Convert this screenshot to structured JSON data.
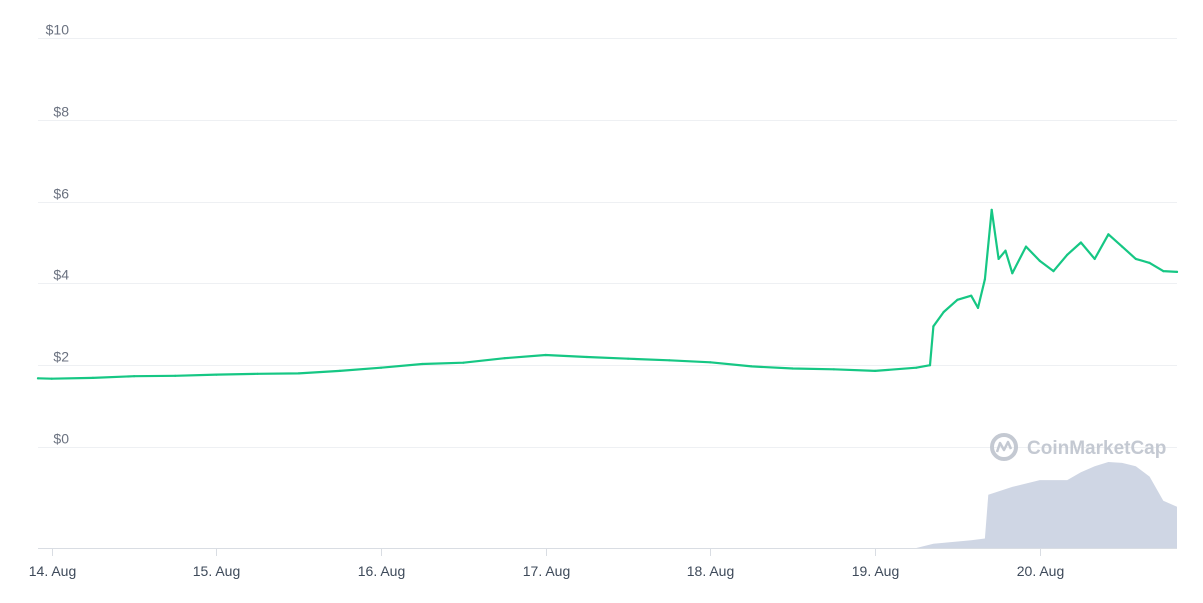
{
  "chart_data": {
    "type": "line",
    "title": "",
    "xlabel": "",
    "ylabel": "",
    "ylim": [
      0,
      10
    ],
    "x_range": [
      "13 Aug 22:00",
      "20 Aug 20:00"
    ],
    "y_ticks": [
      0,
      2,
      4,
      6,
      8,
      10
    ],
    "y_tick_labels": [
      "$0",
      "$2",
      "$4",
      "$6",
      "$8",
      "$10"
    ],
    "x_tick_labels": [
      "14. Aug",
      "15. Aug",
      "16. Aug",
      "17. Aug",
      "18. Aug",
      "19. Aug",
      "20. Aug"
    ],
    "grid": true,
    "legend": "none",
    "series": [
      {
        "color": "#16c784",
        "x": [
          "13 Aug 22:00",
          "14 Aug 00:00",
          "14 Aug 06:00",
          "14 Aug 12:00",
          "14 Aug 18:00",
          "15 Aug 00:00",
          "15 Aug 06:00",
          "15 Aug 12:00",
          "15 Aug 18:00",
          "16 Aug 00:00",
          "16 Aug 06:00",
          "16 Aug 12:00",
          "16 Aug 18:00",
          "17 Aug 00:00",
          "17 Aug 06:00",
          "17 Aug 12:00",
          "17 Aug 18:00",
          "18 Aug 00:00",
          "18 Aug 06:00",
          "18 Aug 12:00",
          "18 Aug 18:00",
          "19 Aug 00:00",
          "19 Aug 06:00",
          "19 Aug 08:00",
          "19 Aug 08:30",
          "19 Aug 10:00",
          "19 Aug 12:00",
          "19 Aug 14:00",
          "19 Aug 15:00",
          "19 Aug 16:00",
          "19 Aug 17:00",
          "19 Aug 18:00",
          "19 Aug 19:00",
          "19 Aug 20:00",
          "19 Aug 22:00",
          "20 Aug 00:00",
          "20 Aug 02:00",
          "20 Aug 04:00",
          "20 Aug 06:00",
          "20 Aug 08:00",
          "20 Aug 10:00",
          "20 Aug 12:00",
          "20 Aug 14:00",
          "20 Aug 16:00",
          "20 Aug 18:00",
          "20 Aug 20:00"
        ],
        "values": [
          1.68,
          1.67,
          1.69,
          1.73,
          1.74,
          1.77,
          1.79,
          1.8,
          1.86,
          1.94,
          2.03,
          2.06,
          2.17,
          2.25,
          2.2,
          2.16,
          2.12,
          2.07,
          1.97,
          1.92,
          1.9,
          1.86,
          1.94,
          2.0,
          2.95,
          3.3,
          3.6,
          3.7,
          3.4,
          4.1,
          5.8,
          4.6,
          4.8,
          4.25,
          4.9,
          4.55,
          4.3,
          4.7,
          5.0,
          4.6,
          5.2,
          4.9,
          4.6,
          4.5,
          4.3,
          4.28
        ]
      }
    ],
    "volume": {
      "color": "#cfd6e4",
      "x": [
        "13 Aug 22:00",
        "19 Aug 06:00",
        "19 Aug 08:30",
        "19 Aug 14:00",
        "19 Aug 16:00",
        "19 Aug 16:30",
        "19 Aug 20:00",
        "20 Aug 00:00",
        "20 Aug 04:00",
        "20 Aug 06:00",
        "20 Aug 08:00",
        "20 Aug 10:00",
        "20 Aug 12:00",
        "20 Aug 14:00",
        "20 Aug 16:00",
        "20 Aug 18:00",
        "20 Aug 20:00"
      ],
      "values": [
        0,
        0,
        0.05,
        0.09,
        0.11,
        0.62,
        0.71,
        0.79,
        0.79,
        0.88,
        0.95,
        1.0,
        0.99,
        0.95,
        0.83,
        0.55,
        0.48
      ]
    },
    "watermark": "CoinMarketCap"
  }
}
